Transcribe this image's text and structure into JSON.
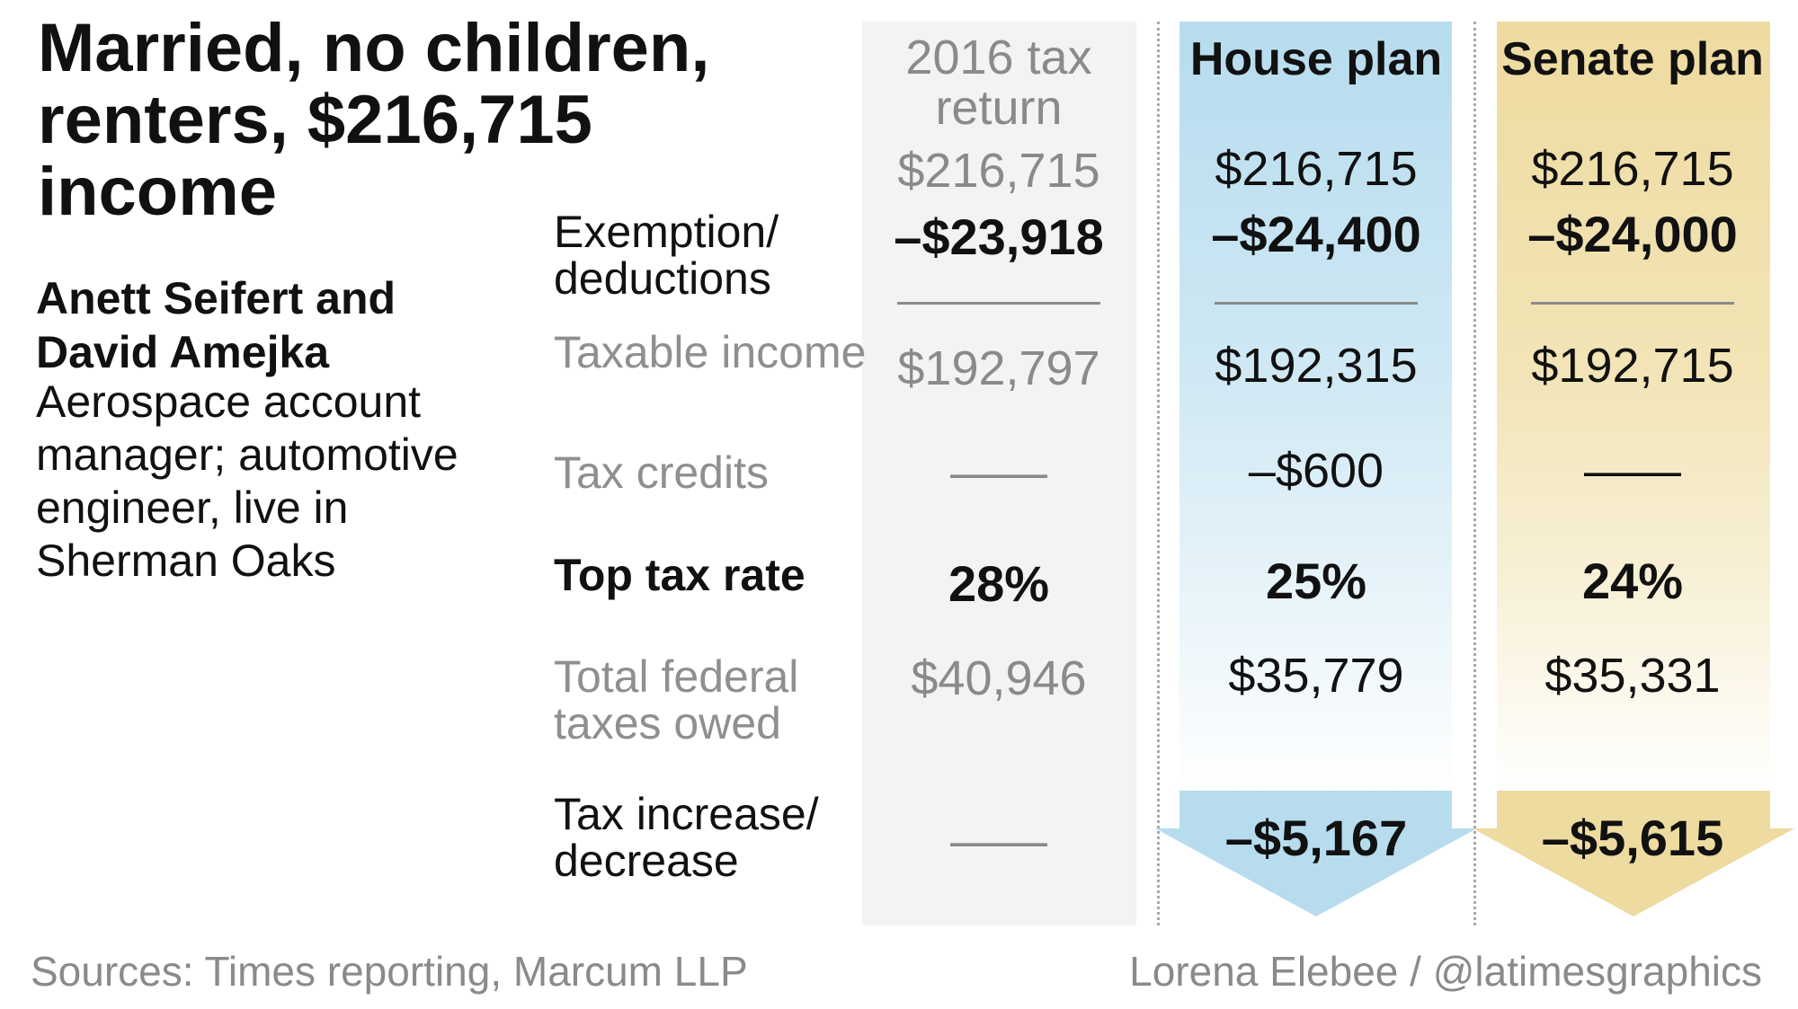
{
  "title": "Married, no children, renters, $216,715 income",
  "people": "Anett Seifert and David Amejka",
  "occupation": "Aerospace account manager; automotive engineer, live in Sherman Oaks",
  "chart_data": {
    "type": "table",
    "columns": [
      "2016 tax return",
      "House plan",
      "Senate plan"
    ],
    "rows": [
      {
        "label": "",
        "values": [
          "$216,715",
          "$216,715",
          "$216,715"
        ]
      },
      {
        "label": "Exemption/ deductions",
        "values": [
          "–$23,918",
          "–$24,400",
          "–$24,000"
        ]
      },
      {
        "label": "Taxable income",
        "values": [
          "$192,797",
          "$192,315",
          "$192,715"
        ]
      },
      {
        "label": "Tax credits",
        "values": [
          "——",
          "–$600",
          "——"
        ]
      },
      {
        "label": "Top tax rate",
        "values": [
          "28%",
          "25%",
          "24%"
        ]
      },
      {
        "label": "Total federal taxes owed",
        "values": [
          "$40,946",
          "$35,779",
          "$35,331"
        ]
      },
      {
        "label": "Tax increase/ decrease",
        "values": [
          "——",
          "–$5,167",
          "–$5,615"
        ]
      }
    ]
  },
  "colors": {
    "house": "#b6dcee",
    "senate": "#eedba0",
    "return_2016": "#f3f3f3"
  },
  "footer": {
    "sources": "Sources: Times reporting, Marcum LLP",
    "credit": "Lorena Elebee / @latimesgraphics"
  }
}
